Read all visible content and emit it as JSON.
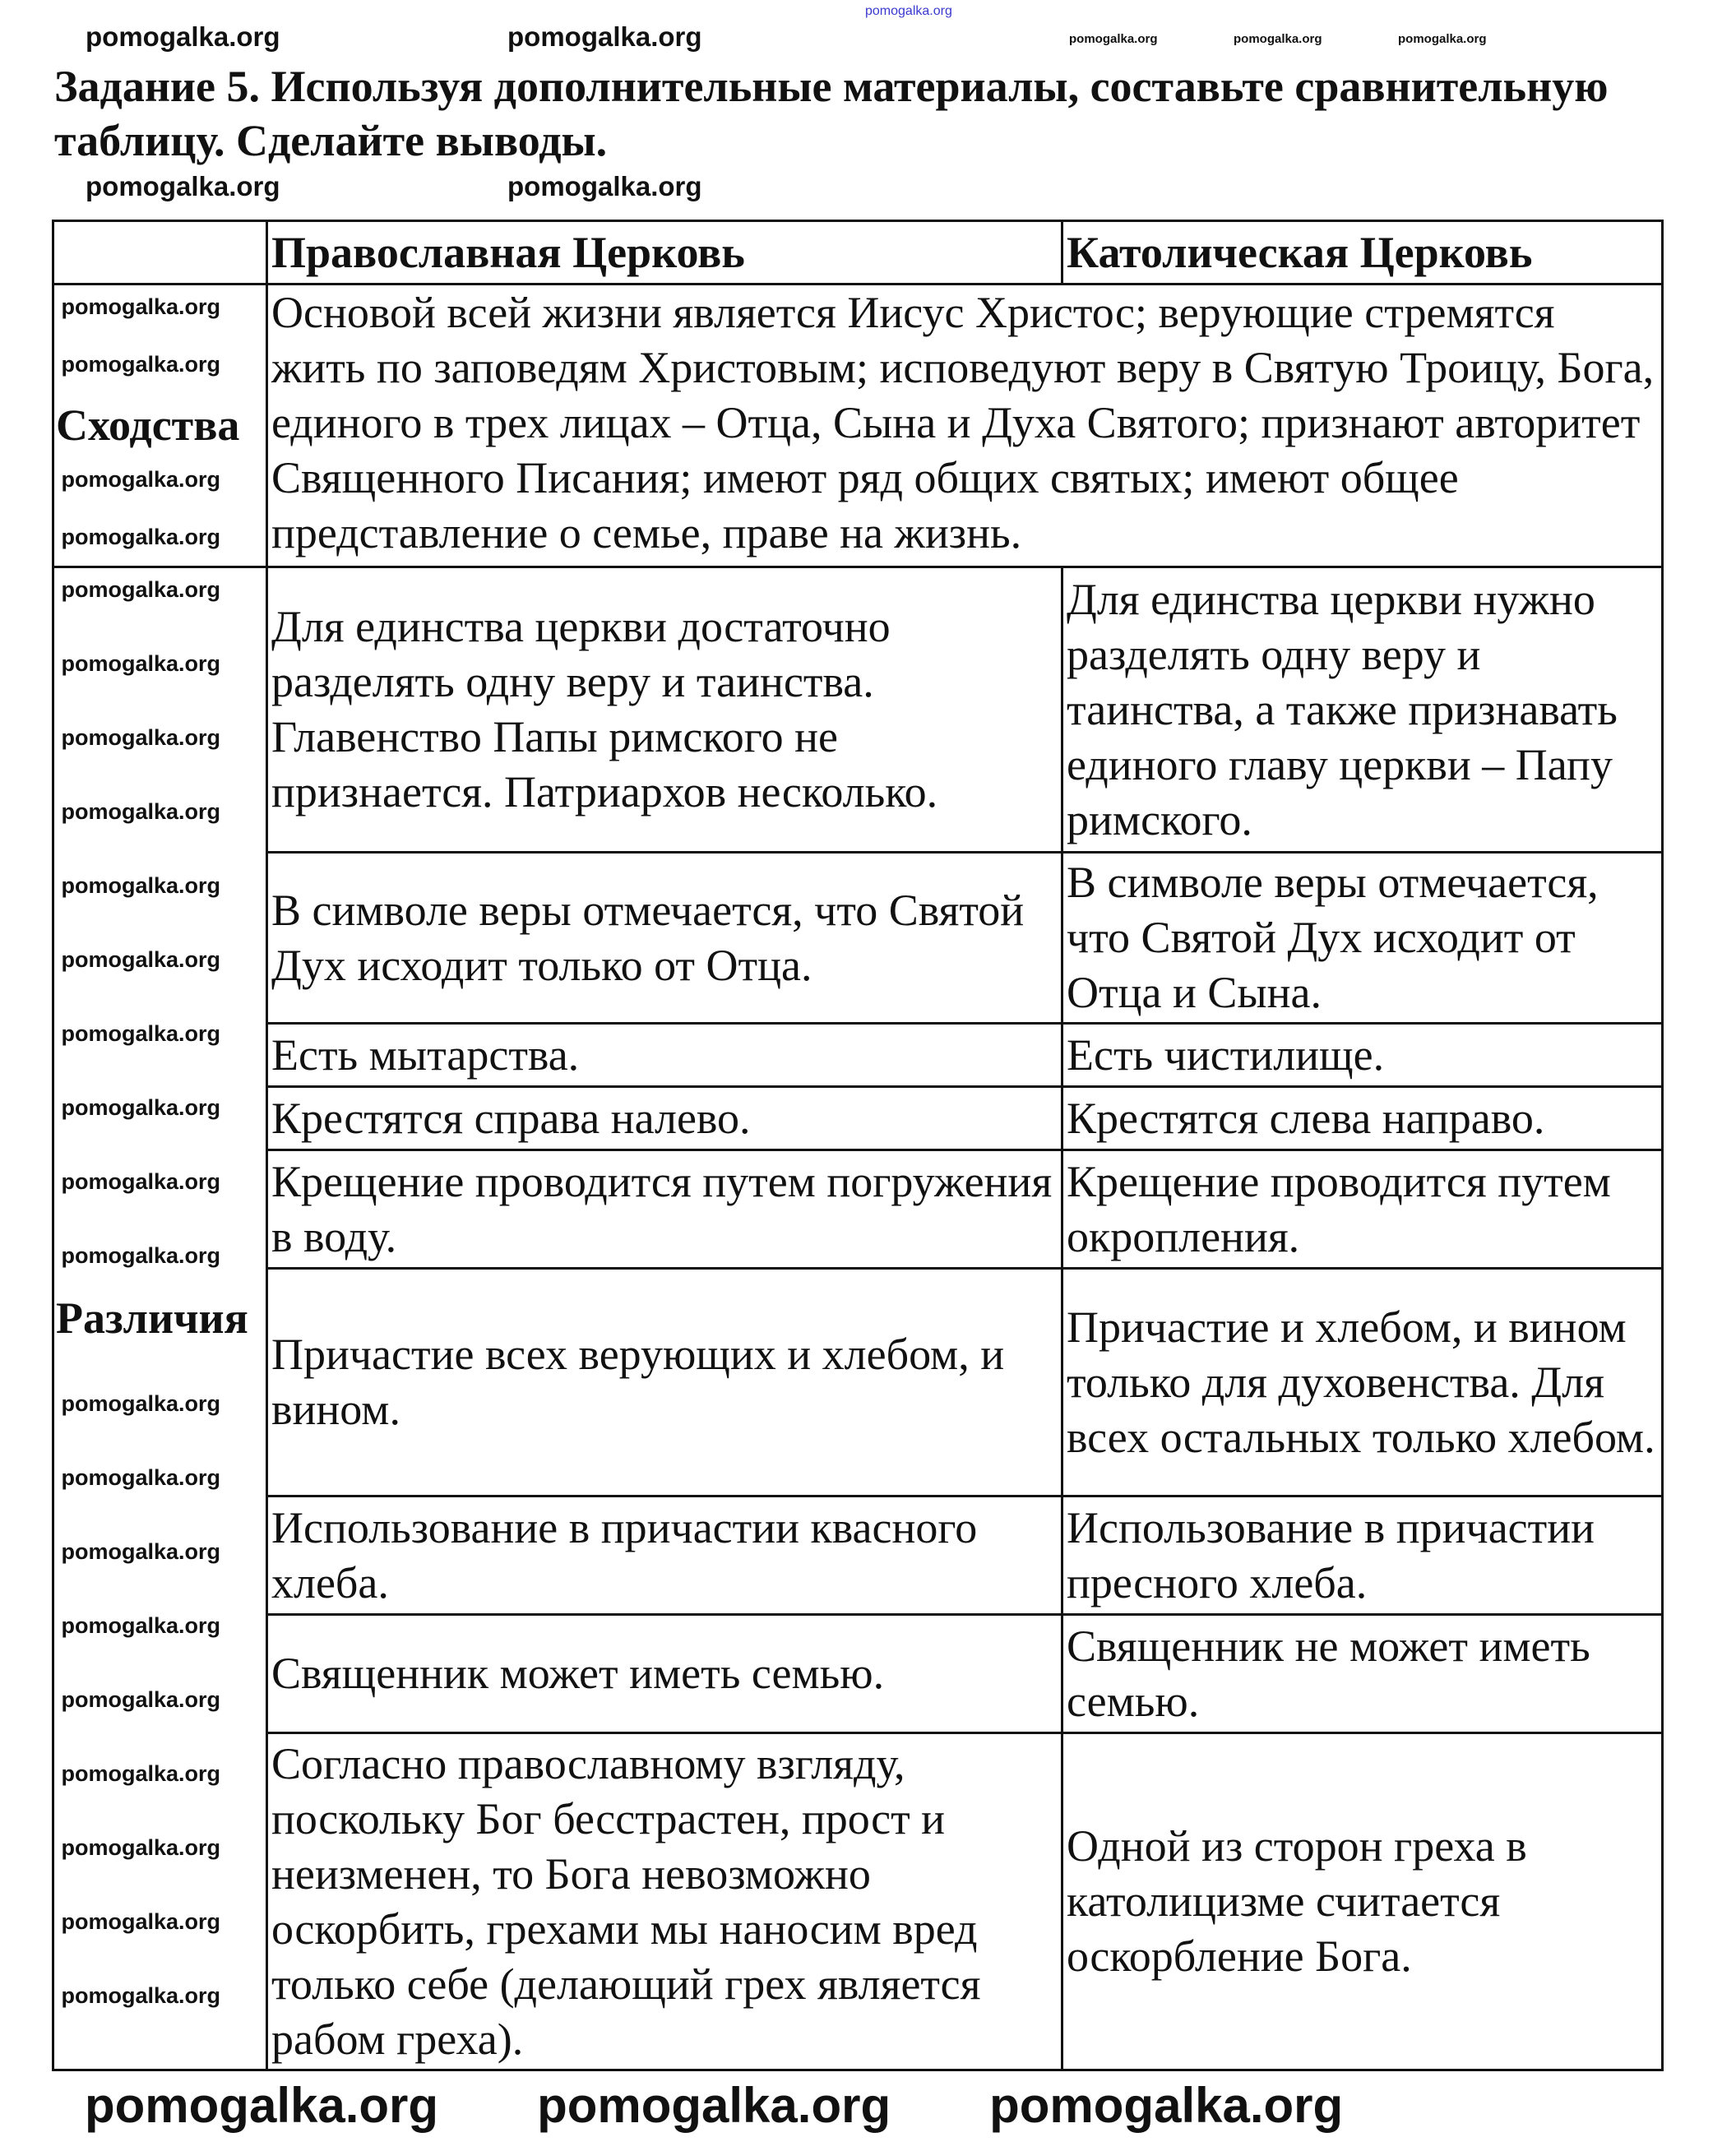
{
  "task_title": "Задание 5. Используя дополнительные материалы, составьте сравнительную таблицу. Сделайте выводы.",
  "watermark": "pomogalka.org",
  "table": {
    "headers": [
      "",
      "Православная Церковь",
      "Католическая Церковь"
    ],
    "similarities": {
      "label": "Сходства",
      "text": "Основой всей жизни является Иисус Христос; верующие стремятся жить по заповедям Христовым; исповедуют веру в Святую Троицу, Бога, единого в трех лицах – Отца, Сына и Духа Святого; признают авторитет Священного Писания; имеют ряд общих святых; имеют общее представление о семье, праве на жизнь."
    },
    "differences": {
      "label": "Различия",
      "rows": [
        {
          "orthodox": "Для единства церкви достаточно разделять одну веру и таинства. Главенство Папы римского не признается. Патриархов несколько.",
          "catholic": "Для единства церкви нужно разделять одну веру и таинства, а также признавать единого главу церкви – Папу римского."
        },
        {
          "orthodox": "В символе веры отмечается, что Святой Дух исходит только от Отца.",
          "catholic": "В символе веры отмечается, что Святой Дух исходит от Отца и Сына."
        },
        {
          "orthodox": "Есть мытарства.",
          "catholic": "Есть чистилище."
        },
        {
          "orthodox": "Крестятся справа налево.",
          "catholic": "Крестятся слева направо."
        },
        {
          "orthodox": "Крещение проводится путем погружения в воду.",
          "catholic": "Крещение проводится путем окропления."
        },
        {
          "orthodox": "Причастие всех верующих и хлебом, и вином.",
          "catholic": "Причастие и хлебом, и вином только для духовенства. Для всех остальных только хлебом."
        },
        {
          "orthodox": "Использование в причастии квасного хлеба.",
          "catholic": "Использование в причастии пресного хлеба."
        },
        {
          "orthodox": "Священник может иметь семью.",
          "catholic": "Священник не может иметь семью."
        },
        {
          "orthodox": "Согласно православному взгляду, поскольку Бог бесстрастен, прост и неизменен, то Бога невозможно оскорбить, грехами мы наносим вред только себе (делающий грех является рабом греха).",
          "catholic": "Одной из сторон греха в католицизме считается оскорбление Бога."
        }
      ]
    }
  }
}
